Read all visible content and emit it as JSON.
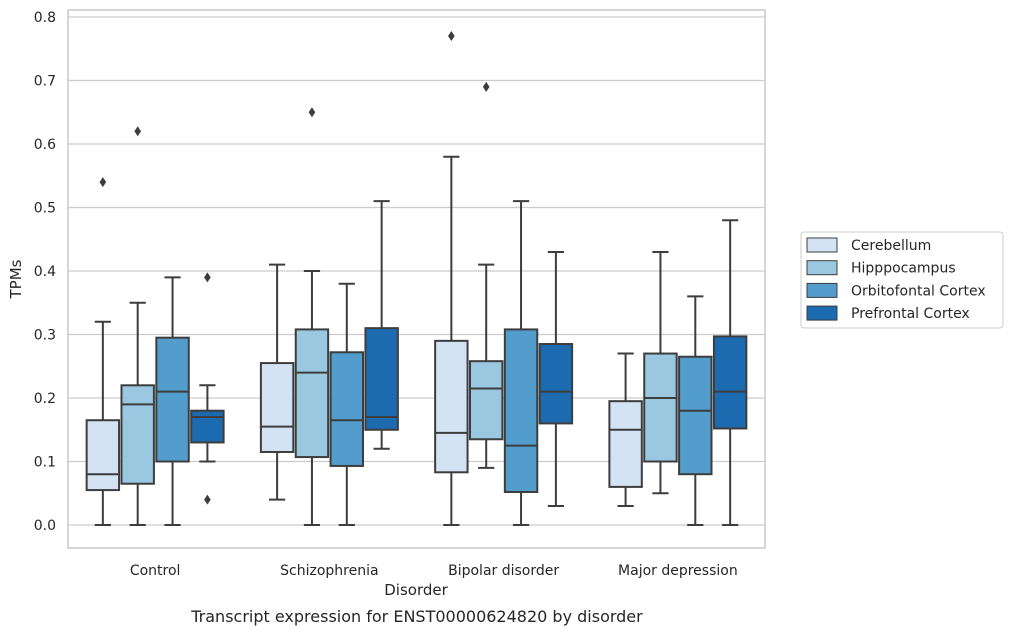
{
  "chart_data": {
    "type": "box",
    "xlabel": "Disorder",
    "ylabel": "TPMs",
    "caption": "Transcript expression for ENST00000624820 by disorder",
    "ylim": [
      -0.037,
      0.812
    ],
    "yticks": [
      "0.0",
      "0.1",
      "0.2",
      "0.3",
      "0.4",
      "0.5",
      "0.6",
      "0.7",
      "0.8"
    ],
    "grid": "horizontal",
    "legend_position": "right",
    "categories": [
      "Control",
      "Schizophrenia",
      "Bipolar disorder",
      "Major depression"
    ],
    "series": [
      {
        "name": "Cerebellum",
        "color": "#d3e3f3",
        "boxes": [
          {
            "whislo": 0.0,
            "q1": 0.055,
            "med": 0.08,
            "q3": 0.165,
            "whishi": 0.32,
            "fliers": [
              0.54
            ]
          },
          {
            "whislo": 0.04,
            "q1": 0.115,
            "med": 0.155,
            "q3": 0.255,
            "whishi": 0.41,
            "fliers": []
          },
          {
            "whislo": 0.0,
            "q1": 0.083,
            "med": 0.145,
            "q3": 0.29,
            "whishi": 0.58,
            "fliers": [
              0.77
            ]
          },
          {
            "whislo": 0.03,
            "q1": 0.06,
            "med": 0.15,
            "q3": 0.195,
            "whishi": 0.27,
            "fliers": []
          }
        ]
      },
      {
        "name": "Hipppocampus",
        "color": "#9ac8e0",
        "boxes": [
          {
            "whislo": 0.0,
            "q1": 0.065,
            "med": 0.19,
            "q3": 0.22,
            "whishi": 0.35,
            "fliers": [
              0.62
            ]
          },
          {
            "whislo": 0.0,
            "q1": 0.107,
            "med": 0.24,
            "q3": 0.308,
            "whishi": 0.4,
            "fliers": [
              0.65
            ]
          },
          {
            "whislo": 0.09,
            "q1": 0.135,
            "med": 0.215,
            "q3": 0.258,
            "whishi": 0.41,
            "fliers": [
              0.69
            ]
          },
          {
            "whislo": 0.05,
            "q1": 0.1,
            "med": 0.2,
            "q3": 0.27,
            "whishi": 0.43,
            "fliers": []
          }
        ]
      },
      {
        "name": "Orbitofontal Cortex",
        "color": "#529dcc",
        "boxes": [
          {
            "whislo": 0.0,
            "q1": 0.1,
            "med": 0.21,
            "q3": 0.295,
            "whishi": 0.39,
            "fliers": []
          },
          {
            "whislo": 0.0,
            "q1": 0.093,
            "med": 0.165,
            "q3": 0.272,
            "whishi": 0.38,
            "fliers": []
          },
          {
            "whislo": 0.0,
            "q1": 0.052,
            "med": 0.125,
            "q3": 0.308,
            "whishi": 0.51,
            "fliers": []
          },
          {
            "whislo": 0.0,
            "q1": 0.08,
            "med": 0.18,
            "q3": 0.265,
            "whishi": 0.36,
            "fliers": []
          }
        ]
      },
      {
        "name": "Prefrontal Cortex",
        "color": "#1c6aaf",
        "boxes": [
          {
            "whislo": 0.1,
            "q1": 0.13,
            "med": 0.17,
            "q3": 0.18,
            "whishi": 0.22,
            "fliers": [
              0.04,
              0.39
            ]
          },
          {
            "whislo": 0.12,
            "q1": 0.15,
            "med": 0.17,
            "q3": 0.31,
            "whishi": 0.51,
            "fliers": []
          },
          {
            "whislo": 0.03,
            "q1": 0.16,
            "med": 0.21,
            "q3": 0.285,
            "whishi": 0.43,
            "fliers": []
          },
          {
            "whislo": 0.0,
            "q1": 0.152,
            "med": 0.21,
            "q3": 0.297,
            "whishi": 0.48,
            "fliers": []
          }
        ]
      }
    ]
  }
}
